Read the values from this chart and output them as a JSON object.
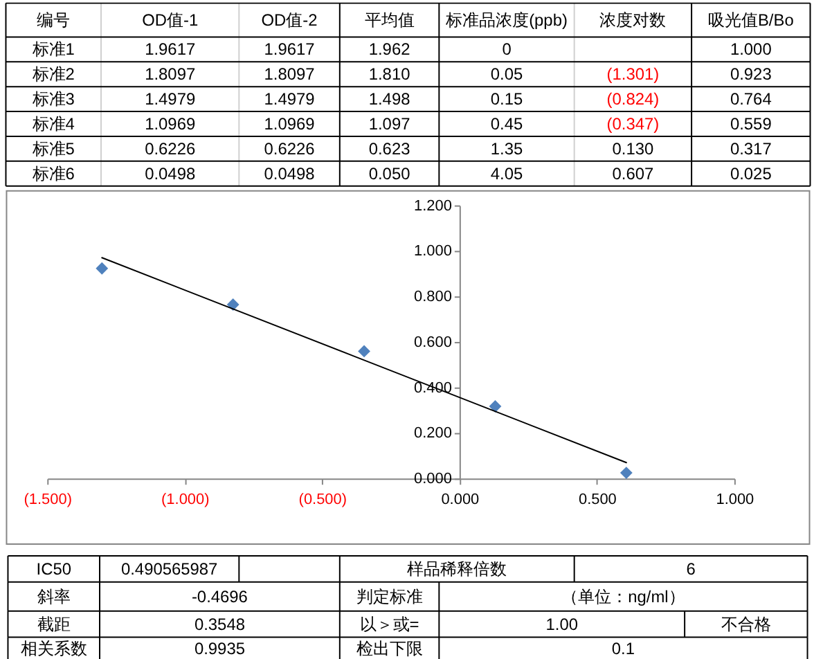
{
  "chart_data": [
    {
      "type": "other",
      "categories": [
        "编号",
        "OD值-1",
        "OD值-2",
        "平均值",
        "标准品浓度(ppb)",
        "浓度对数",
        "吸光值B/Bo"
      ],
      "y_categories": [
        "标准1",
        "标准2",
        "标准3",
        "标准4",
        "标准5",
        "标准6"
      ],
      "cell_labels": [
        [
          "1.9617",
          "1.9617",
          "1.962",
          "0",
          null,
          "1.000"
        ],
        [
          "1.8097",
          "1.8097",
          "1.810",
          "0.05",
          "(1.301)",
          "0.923"
        ],
        [
          "1.4979",
          "1.4979",
          "1.498",
          "0.15",
          "(0.824)",
          "0.764"
        ],
        [
          "1.0969",
          "1.0969",
          "1.097",
          "0.45",
          "(0.347)",
          "0.559"
        ],
        [
          "0.6226",
          "0.6226",
          "0.623",
          "1.35",
          "0.130",
          "0.317"
        ],
        [
          "0.0498",
          "0.0498",
          "0.050",
          "4.05",
          "0.607",
          "0.025"
        ]
      ]
    },
    {
      "type": "scatter",
      "xlim": [
        -1.5,
        1.0
      ],
      "ylim": [
        0,
        1.2
      ],
      "xticks": [
        {
          "value": -1.5,
          "label": "(1.500)"
        },
        {
          "value": -1.0,
          "label": "(1.000)"
        },
        {
          "value": -0.5,
          "label": "(0.500)"
        },
        {
          "value": 0,
          "label": "0.000"
        },
        {
          "value": 0.5,
          "label": "0.500"
        },
        {
          "value": 1.0,
          "label": "1.000"
        }
      ],
      "yticks": [
        {
          "value": 0,
          "label": "0.000"
        },
        {
          "value": 0.2,
          "label": "0.200"
        },
        {
          "value": 0.4,
          "label": "0.400"
        },
        {
          "value": 0.6,
          "label": "0.600"
        },
        {
          "value": 0.8,
          "label": "0.800"
        },
        {
          "value": 1.0,
          "label": "1.000"
        },
        {
          "value": 1.2,
          "label": "1.200"
        }
      ],
      "series": [
        {
          "type": "scatter",
          "marker": "diamond",
          "color": "#4f81bd",
          "x": [
            -1.301,
            -0.824,
            -0.347,
            0.13,
            0.607
          ],
          "values": [
            0.923,
            0.764,
            0.559,
            0.317,
            0.025
          ]
        },
        {
          "type": "line",
          "marker": "none",
          "color": "#000000",
          "x": [
            -1.301,
            0.607
          ],
          "values": [
            0.97,
            0.07
          ]
        }
      ]
    },
    {
      "type": "other",
      "y_categories": [
        "IC50",
        "斜率",
        "截距",
        "相关系数"
      ],
      "cell_labels": [
        [
          "0.490565987",
          null,
          "样品稀释倍数",
          "6"
        ],
        [
          "-0.4696",
          "判定标准",
          "（单位：ng/ml）"
        ],
        [
          "0.3548",
          "以＞或=",
          "1.00",
          "不合格"
        ],
        [
          "0.9935",
          "检出下限",
          "0.1"
        ]
      ]
    }
  ]
}
